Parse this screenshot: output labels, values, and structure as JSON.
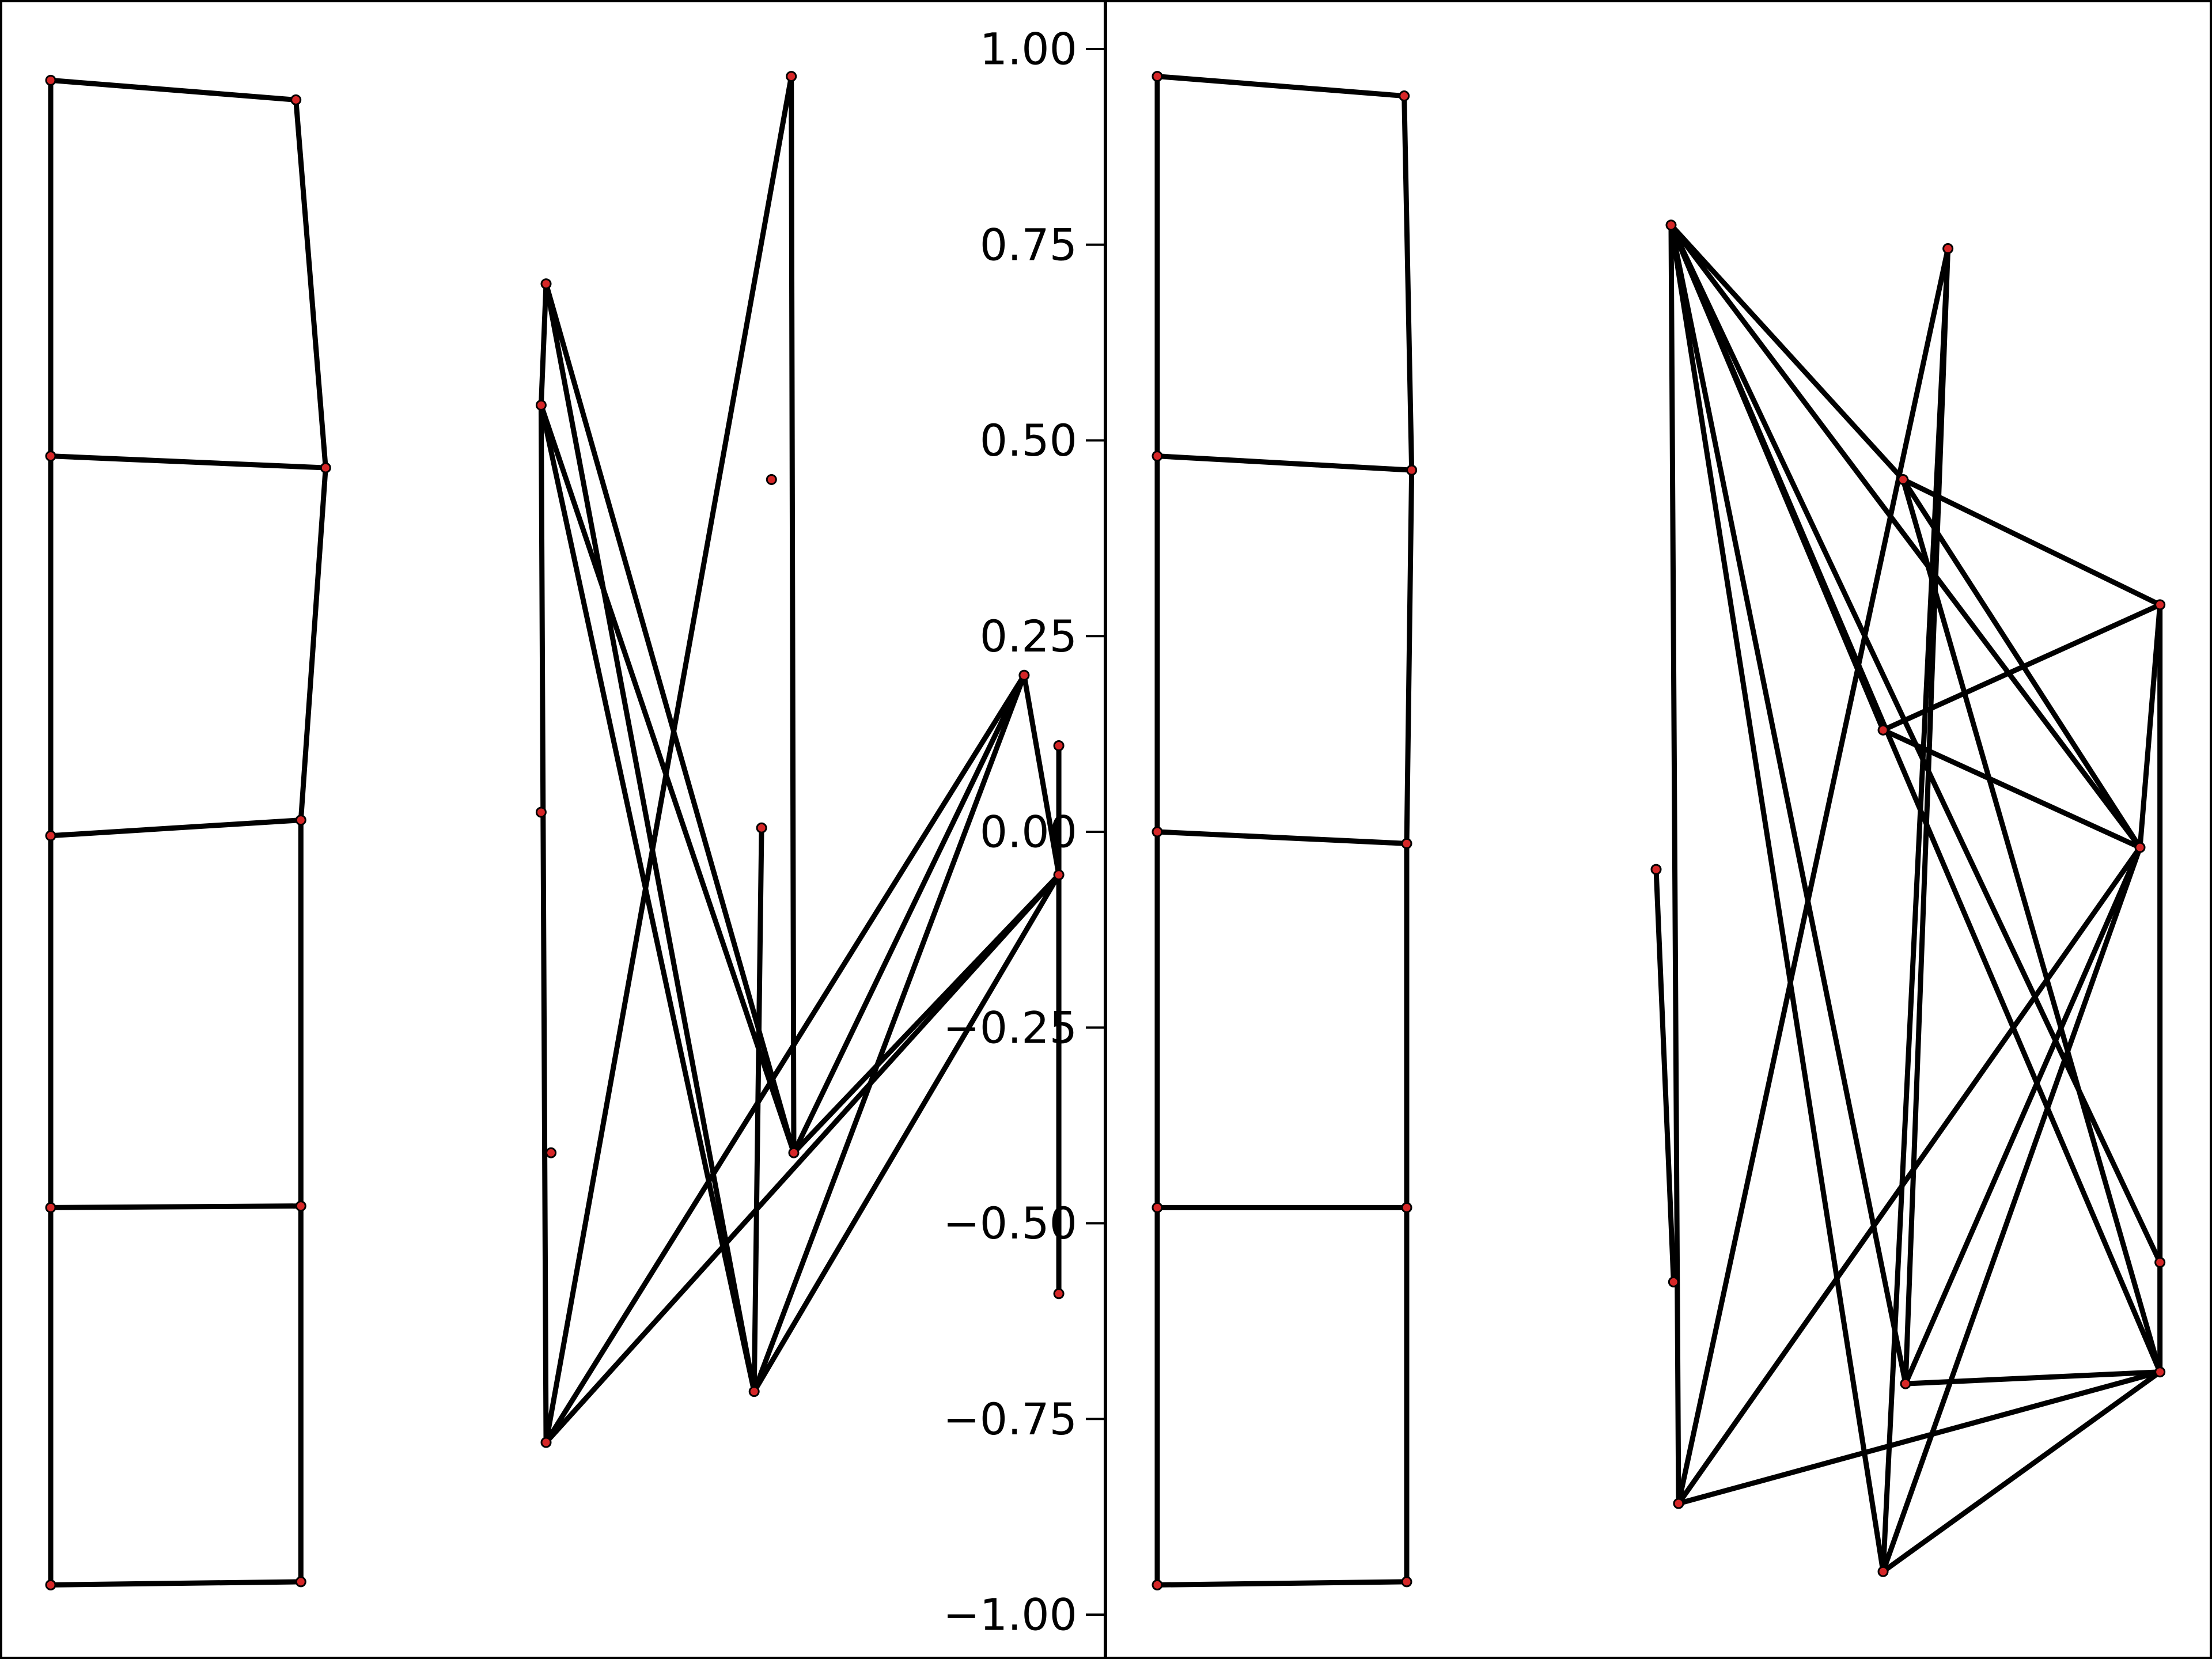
{
  "chart_data": [
    {
      "type": "scatter",
      "panel": "left",
      "title": "",
      "xlabel": "",
      "ylabel": "",
      "ylim": [
        -1.05,
        1.05
      ],
      "grid": false,
      "legend": "none",
      "colors": {
        "edge": "#000000",
        "node": "#d62728",
        "axis": "#000000"
      },
      "subgraphs": [
        {
          "name": "",
          "nodes": [
            {
              "x": 0.0,
              "y": 0.96
            },
            {
              "x": 0.99,
              "y": 0.935
            },
            {
              "x": 0.0,
              "y": 0.48
            },
            {
              "x": 1.11,
              "y": 0.465
            },
            {
              "x": 0.0,
              "y": -0.005
            },
            {
              "x": 1.01,
              "y": 0.015
            },
            {
              "x": 0.0,
              "y": -0.48
            },
            {
              "x": 1.01,
              "y": -0.478
            },
            {
              "x": 0.0,
              "y": -0.962
            },
            {
              "x": 1.01,
              "y": -0.958
            }
          ],
          "edges": [
            [
              0,
              1
            ],
            [
              0,
              2
            ],
            [
              1,
              3
            ],
            [
              2,
              3
            ],
            [
              2,
              4
            ],
            [
              3,
              5
            ],
            [
              4,
              5
            ],
            [
              4,
              6
            ],
            [
              5,
              7
            ],
            [
              6,
              7
            ],
            [
              6,
              8
            ],
            [
              7,
              9
            ],
            [
              8,
              9
            ]
          ]
        },
        {
          "name": "",
          "nodes": [
            {
              "x": 2.0,
              "y": 0.7
            },
            {
              "x": 1.98,
              "y": 0.545
            },
            {
              "x": 1.98,
              "y": 0.025
            },
            {
              "x": 2.02,
              "y": -0.41
            },
            {
              "x": 2.0,
              "y": -0.78
            },
            {
              "x": 2.84,
              "y": -0.715
            },
            {
              "x": 2.87,
              "y": 0.005
            },
            {
              "x": 2.91,
              "y": 0.45
            },
            {
              "x": 2.99,
              "y": 0.965
            },
            {
              "x": 3.0,
              "y": -0.41
            },
            {
              "x": 3.93,
              "y": 0.2
            },
            {
              "x": 4.07,
              "y": 0.11
            },
            {
              "x": 4.07,
              "y": -0.055
            },
            {
              "x": 4.07,
              "y": -0.59
            }
          ],
          "edges": [
            [
              0,
              1
            ],
            [
              1,
              4
            ],
            [
              0,
              9
            ],
            [
              0,
              5
            ],
            [
              1,
              5
            ],
            [
              1,
              9
            ],
            [
              4,
              8
            ],
            [
              8,
              9
            ],
            [
              6,
              5
            ],
            [
              5,
              10
            ],
            [
              5,
              12
            ],
            [
              9,
              10
            ],
            [
              9,
              12
            ],
            [
              4,
              10
            ],
            [
              4,
              12
            ],
            [
              10,
              12
            ],
            [
              11,
              13
            ]
          ]
        }
      ]
    },
    {
      "type": "scatter",
      "panel": "right",
      "title": "",
      "xlabel": "",
      "ylabel": "",
      "ylim": [
        -1.05,
        1.05
      ],
      "yticks": [
        "1.00",
        "0.75",
        "0.50",
        "0.25",
        "0.00",
        "−0.25",
        "−0.50",
        "−0.75",
        "−1.00"
      ],
      "grid": false,
      "legend": "none",
      "colors": {
        "edge": "#000000",
        "node": "#d62728",
        "axis": "#000000"
      },
      "subgraphs": [
        {
          "name": "",
          "nodes": [
            {
              "x": 0.0,
              "y": 0.965
            },
            {
              "x": 0.99,
              "y": 0.94
            },
            {
              "x": 0.0,
              "y": 0.48
            },
            {
              "x": 1.02,
              "y": 0.462
            },
            {
              "x": 0.0,
              "y": 0.0
            },
            {
              "x": 1.0,
              "y": -0.015
            },
            {
              "x": 0.0,
              "y": -0.48
            },
            {
              "x": 1.0,
              "y": -0.48
            },
            {
              "x": 0.0,
              "y": -0.962
            },
            {
              "x": 1.0,
              "y": -0.958
            }
          ],
          "edges": [
            [
              0,
              1
            ],
            [
              0,
              2
            ],
            [
              1,
              3
            ],
            [
              2,
              3
            ],
            [
              2,
              4
            ],
            [
              3,
              5
            ],
            [
              4,
              5
            ],
            [
              4,
              6
            ],
            [
              5,
              7
            ],
            [
              6,
              7
            ],
            [
              6,
              8
            ],
            [
              7,
              9
            ],
            [
              8,
              9
            ]
          ]
        },
        {
          "name": "",
          "nodes": [
            {
              "x": 2.0,
              "y": -0.048
            },
            {
              "x": 2.06,
              "y": 0.775
            },
            {
              "x": 2.07,
              "y": -0.575
            },
            {
              "x": 2.09,
              "y": -0.858
            },
            {
              "x": 2.99,
              "y": 0.45
            },
            {
              "x": 2.91,
              "y": 0.13
            },
            {
              "x": 2.91,
              "y": -0.945
            },
            {
              "x": 3.0,
              "y": -0.705
            },
            {
              "x": 3.17,
              "y": 0.745
            },
            {
              "x": 4.02,
              "y": 0.29
            },
            {
              "x": 3.94,
              "y": -0.02
            },
            {
              "x": 4.02,
              "y": -0.55
            },
            {
              "x": 4.02,
              "y": -0.69
            }
          ],
          "edges": [
            [
              0,
              2
            ],
            [
              1,
              3
            ],
            [
              1,
              4
            ],
            [
              1,
              5
            ],
            [
              1,
              6
            ],
            [
              1,
              7
            ],
            [
              1,
              10
            ],
            [
              1,
              11
            ],
            [
              1,
              12
            ],
            [
              4,
              9
            ],
            [
              4,
              12
            ],
            [
              5,
              9
            ],
            [
              5,
              10
            ],
            [
              3,
              8
            ],
            [
              3,
              10
            ],
            [
              3,
              12
            ],
            [
              6,
              8
            ],
            [
              6,
              10
            ],
            [
              6,
              12
            ],
            [
              7,
              8
            ],
            [
              7,
              10
            ],
            [
              7,
              12
            ],
            [
              9,
              10
            ],
            [
              9,
              12
            ],
            [
              4,
              10
            ]
          ]
        }
      ]
    }
  ]
}
